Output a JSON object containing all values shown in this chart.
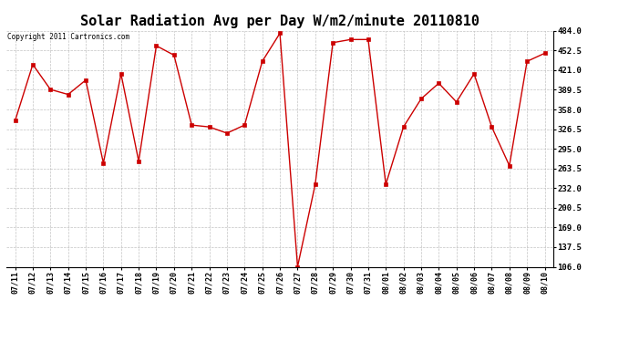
{
  "title": "Solar Radiation Avg per Day W/m2/minute 20110810",
  "copyright_text": "Copyright 2011 Cartronics.com",
  "dates": [
    "07/11",
    "07/12",
    "07/13",
    "07/14",
    "07/15",
    "07/16",
    "07/17",
    "07/18",
    "07/19",
    "07/20",
    "07/21",
    "07/22",
    "07/23",
    "07/24",
    "07/25",
    "07/26",
    "07/27",
    "07/28",
    "07/29",
    "07/30",
    "07/31",
    "08/01",
    "08/02",
    "08/03",
    "08/04",
    "08/05",
    "08/06",
    "08/07",
    "08/08",
    "08/09",
    "08/10"
  ],
  "values": [
    340,
    430,
    390,
    382,
    405,
    272,
    415,
    275,
    460,
    445,
    333,
    330,
    320,
    333,
    435,
    480,
    106,
    238,
    465,
    470,
    470,
    238,
    330,
    375,
    400,
    370,
    415,
    330,
    268,
    435,
    448
  ],
  "line_color": "#cc0000",
  "marker": "s",
  "marker_size": 2.5,
  "background_color": "#ffffff",
  "grid_color": "#aaaaaa",
  "ylim_min": 106.0,
  "ylim_max": 484.0,
  "yticks": [
    106.0,
    137.5,
    169.0,
    200.5,
    232.0,
    263.5,
    295.0,
    326.5,
    358.0,
    389.5,
    421.0,
    452.5,
    484.0
  ],
  "title_fontsize": 11,
  "tick_fontsize": 6,
  "copyright_fontsize": 5.5,
  "ytick_fontsize": 6.5
}
